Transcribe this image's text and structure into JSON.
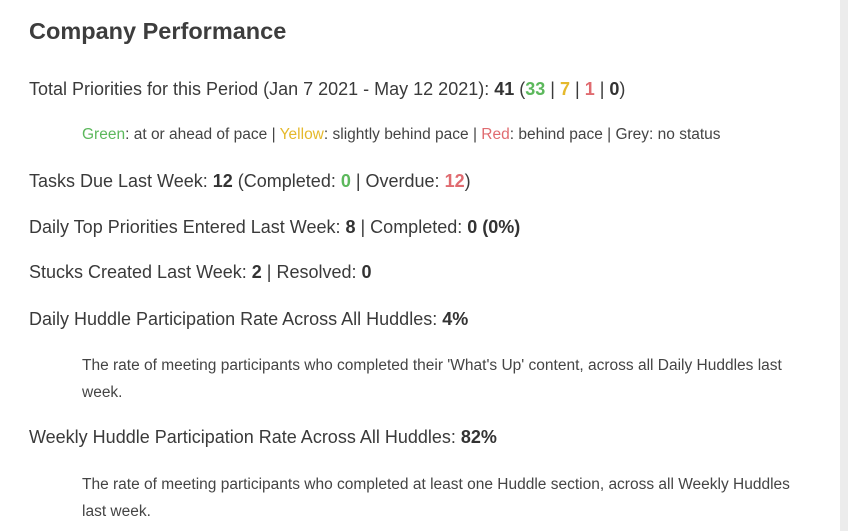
{
  "title": "Company Performance",
  "priorities": {
    "label": "Total Priorities for this Period (Jan 7 2021 - May 12 2021): ",
    "total": "41",
    "green": "33",
    "yellow": "7",
    "red": "1",
    "grey": "0"
  },
  "legend": {
    "green_word": "Green",
    "green_desc": ": at or ahead of pace | ",
    "yellow_word": "Yellow",
    "yellow_desc": ": slightly behind pace | ",
    "red_word": "Red",
    "red_desc": ": behind pace | Grey: no status"
  },
  "tasks": {
    "label": "Tasks Due Last Week: ",
    "due": "12",
    "completed_label": " (Completed: ",
    "completed": "0",
    "overdue_label": " | Overdue: ",
    "overdue": "12"
  },
  "daily_priorities": {
    "label": "Daily Top Priorities Entered Last Week: ",
    "entered": "8",
    "completed_label": " | Completed: ",
    "completed": "0 (0%)"
  },
  "stucks": {
    "label": "Stucks Created Last Week: ",
    "created": "2",
    "resolved_label": " | Resolved: ",
    "resolved": "0"
  },
  "daily_huddle": {
    "label": "Daily Huddle Participation Rate Across All Huddles: ",
    "rate": "4%",
    "note": "The rate of meeting participants who completed their 'What's Up' content, across all Daily Huddles last week."
  },
  "weekly_huddle": {
    "label": "Weekly Huddle Participation Rate Across All Huddles: ",
    "rate": "82%",
    "note": "The rate of meeting participants who completed at least one Huddle section, across all Weekly Huddles last week."
  }
}
